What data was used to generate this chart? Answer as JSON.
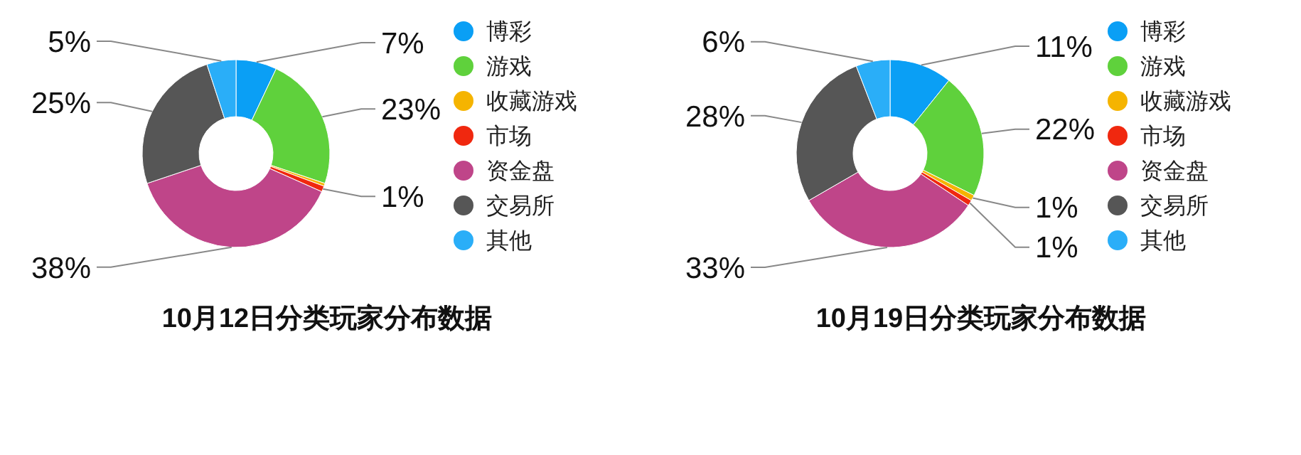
{
  "chart_data": [
    {
      "type": "donut",
      "title": "10月12日分类玩家分布数据",
      "categories": [
        "博彩",
        "游戏",
        "收藏游戏",
        "市场",
        "资金盘",
        "交易所",
        "其他"
      ],
      "values": [
        7,
        23,
        0.5,
        1,
        38,
        25,
        5
      ],
      "value_labels": [
        "7%",
        "23%",
        null,
        "1%",
        "38%",
        "25%",
        "5%"
      ],
      "colors": [
        "#0a9ff5",
        "#5fd13c",
        "#f5b400",
        "#f0280f",
        "#bf4589",
        "#565656",
        "#2aaef8"
      ],
      "legend": "right"
    },
    {
      "type": "donut",
      "title": "10月19日分类玩家分布数据",
      "categories": [
        "博彩",
        "游戏",
        "收藏游戏",
        "市场",
        "资金盘",
        "交易所",
        "其他"
      ],
      "values": [
        11,
        22,
        1,
        1,
        33,
        28,
        6
      ],
      "value_labels": [
        "11%",
        "22%",
        "1%",
        "1%",
        "33%",
        "28%",
        "6%"
      ],
      "colors": [
        "#0a9ff5",
        "#5fd13c",
        "#f5b400",
        "#f0280f",
        "#bf4589",
        "#565656",
        "#2aaef8"
      ],
      "legend": "right"
    }
  ]
}
